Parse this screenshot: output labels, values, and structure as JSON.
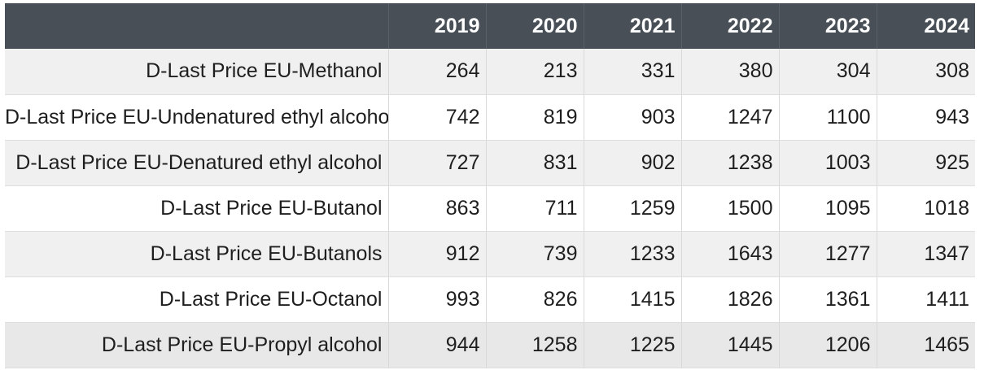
{
  "chart_data": {
    "type": "table",
    "columns": [
      "",
      "2019",
      "2020",
      "2021",
      "2022",
      "2023",
      "2024"
    ],
    "rows": [
      {
        "label": "D-Last Price EU-Methanol",
        "values": [
          "264",
          "213",
          "331",
          "380",
          "304",
          "308"
        ]
      },
      {
        "label": "D-Last Price EU-Undenatured ethyl alcohol",
        "values": [
          "742",
          "819",
          "903",
          "1247",
          "1100",
          "943"
        ]
      },
      {
        "label": "D-Last Price EU-Denatured ethyl alcohol",
        "values": [
          "727",
          "831",
          "902",
          "1238",
          "1003",
          "925"
        ]
      },
      {
        "label": "D-Last Price EU-Butanol",
        "values": [
          "863",
          "711",
          "1259",
          "1500",
          "1095",
          "1018"
        ]
      },
      {
        "label": "D-Last Price EU-Butanols",
        "values": [
          "912",
          "739",
          "1233",
          "1643",
          "1277",
          "1347"
        ]
      },
      {
        "label": "D-Last Price EU-Octanol",
        "values": [
          "993",
          "826",
          "1415",
          "1826",
          "1361",
          "1411"
        ]
      },
      {
        "label": "D-Last Price EU-Propyl alcohol",
        "values": [
          "944",
          "1258",
          "1225",
          "1445",
          "1206",
          "1465"
        ]
      }
    ]
  },
  "colors": {
    "header_bg": "#484f57",
    "header_text": "#ffffff",
    "row_odd": "#f0f0f0",
    "row_even": "#ffffff"
  }
}
